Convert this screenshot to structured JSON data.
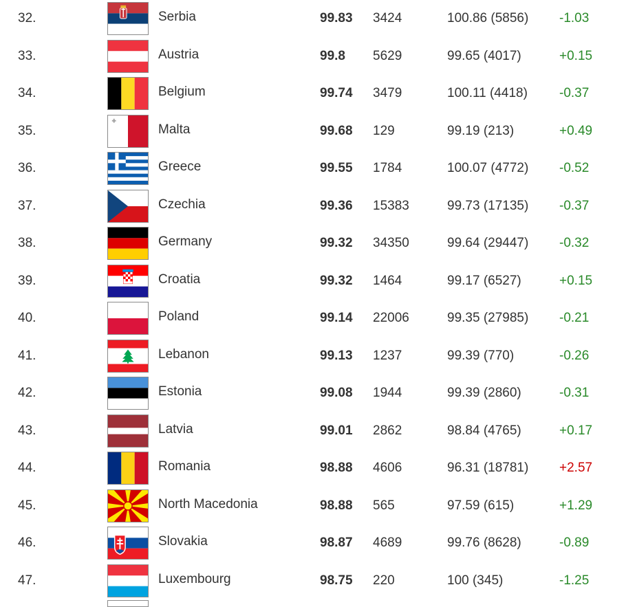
{
  "rows": [
    {
      "rank": "32.",
      "country": "Serbia",
      "score": "99.83",
      "count": "3424",
      "previous": "100.86 (5856)",
      "change": "-1.03",
      "change_color": "#2a8a2a",
      "flag_icon": "serbia-flag-icon"
    },
    {
      "rank": "33.",
      "country": "Austria",
      "score": "99.8",
      "count": "5629",
      "previous": "99.65 (4017)",
      "change": "+0.15",
      "change_color": "#2a8a2a",
      "flag_icon": "austria-flag-icon"
    },
    {
      "rank": "34.",
      "country": "Belgium",
      "score": "99.74",
      "count": "3479",
      "previous": "100.11 (4418)",
      "change": "-0.37",
      "change_color": "#2a8a2a",
      "flag_icon": "belgium-flag-icon"
    },
    {
      "rank": "35.",
      "country": "Malta",
      "score": "99.68",
      "count": "129",
      "previous": "99.19 (213)",
      "change": "+0.49",
      "change_color": "#2a8a2a",
      "flag_icon": "malta-flag-icon"
    },
    {
      "rank": "36.",
      "country": "Greece",
      "score": "99.55",
      "count": "1784",
      "previous": "100.07 (4772)",
      "change": "-0.52",
      "change_color": "#2a8a2a",
      "flag_icon": "greece-flag-icon"
    },
    {
      "rank": "37.",
      "country": "Czechia",
      "score": "99.36",
      "count": "15383",
      "previous": "99.73 (17135)",
      "change": "-0.37",
      "change_color": "#2a8a2a",
      "flag_icon": "czechia-flag-icon"
    },
    {
      "rank": "38.",
      "country": "Germany",
      "score": "99.32",
      "count": "34350",
      "previous": "99.64 (29447)",
      "change": "-0.32",
      "change_color": "#2a8a2a",
      "flag_icon": "germany-flag-icon"
    },
    {
      "rank": "39.",
      "country": "Croatia",
      "score": "99.32",
      "count": "1464",
      "previous": "99.17 (6527)",
      "change": "+0.15",
      "change_color": "#2a8a2a",
      "flag_icon": "croatia-flag-icon"
    },
    {
      "rank": "40.",
      "country": "Poland",
      "score": "99.14",
      "count": "22006",
      "previous": "99.35 (27985)",
      "change": "-0.21",
      "change_color": "#2a8a2a",
      "flag_icon": "poland-flag-icon"
    },
    {
      "rank": "41.",
      "country": "Lebanon",
      "score": "99.13",
      "count": "1237",
      "previous": "99.39 (770)",
      "change": "-0.26",
      "change_color": "#2a8a2a",
      "flag_icon": "lebanon-flag-icon"
    },
    {
      "rank": "42.",
      "country": "Estonia",
      "score": "99.08",
      "count": "1944",
      "previous": "99.39 (2860)",
      "change": "-0.31",
      "change_color": "#2a8a2a",
      "flag_icon": "estonia-flag-icon"
    },
    {
      "rank": "43.",
      "country": "Latvia",
      "score": "99.01",
      "count": "2862",
      "previous": "98.84 (4765)",
      "change": "+0.17",
      "change_color": "#2a8a2a",
      "flag_icon": "latvia-flag-icon"
    },
    {
      "rank": "44.",
      "country": "Romania",
      "score": "98.88",
      "count": "4606",
      "previous": "96.31 (18781)",
      "change": "+2.57",
      "change_color": "#cc0000",
      "flag_icon": "romania-flag-icon"
    },
    {
      "rank": "45.",
      "country": "North Macedonia",
      "score": "98.88",
      "count": "565",
      "previous": "97.59 (615)",
      "change": "+1.29",
      "change_color": "#2a8a2a",
      "flag_icon": "north-macedonia-flag-icon"
    },
    {
      "rank": "46.",
      "country": "Slovakia",
      "score": "98.87",
      "count": "4689",
      "previous": "99.76 (8628)",
      "change": "-0.89",
      "change_color": "#2a8a2a",
      "flag_icon": "slovakia-flag-icon"
    },
    {
      "rank": "47.",
      "country": "Luxembourg",
      "score": "98.75",
      "count": "220",
      "previous": "100 (345)",
      "change": "-1.25",
      "change_color": "#2a8a2a",
      "flag_icon": "luxembourg-flag-icon"
    }
  ]
}
